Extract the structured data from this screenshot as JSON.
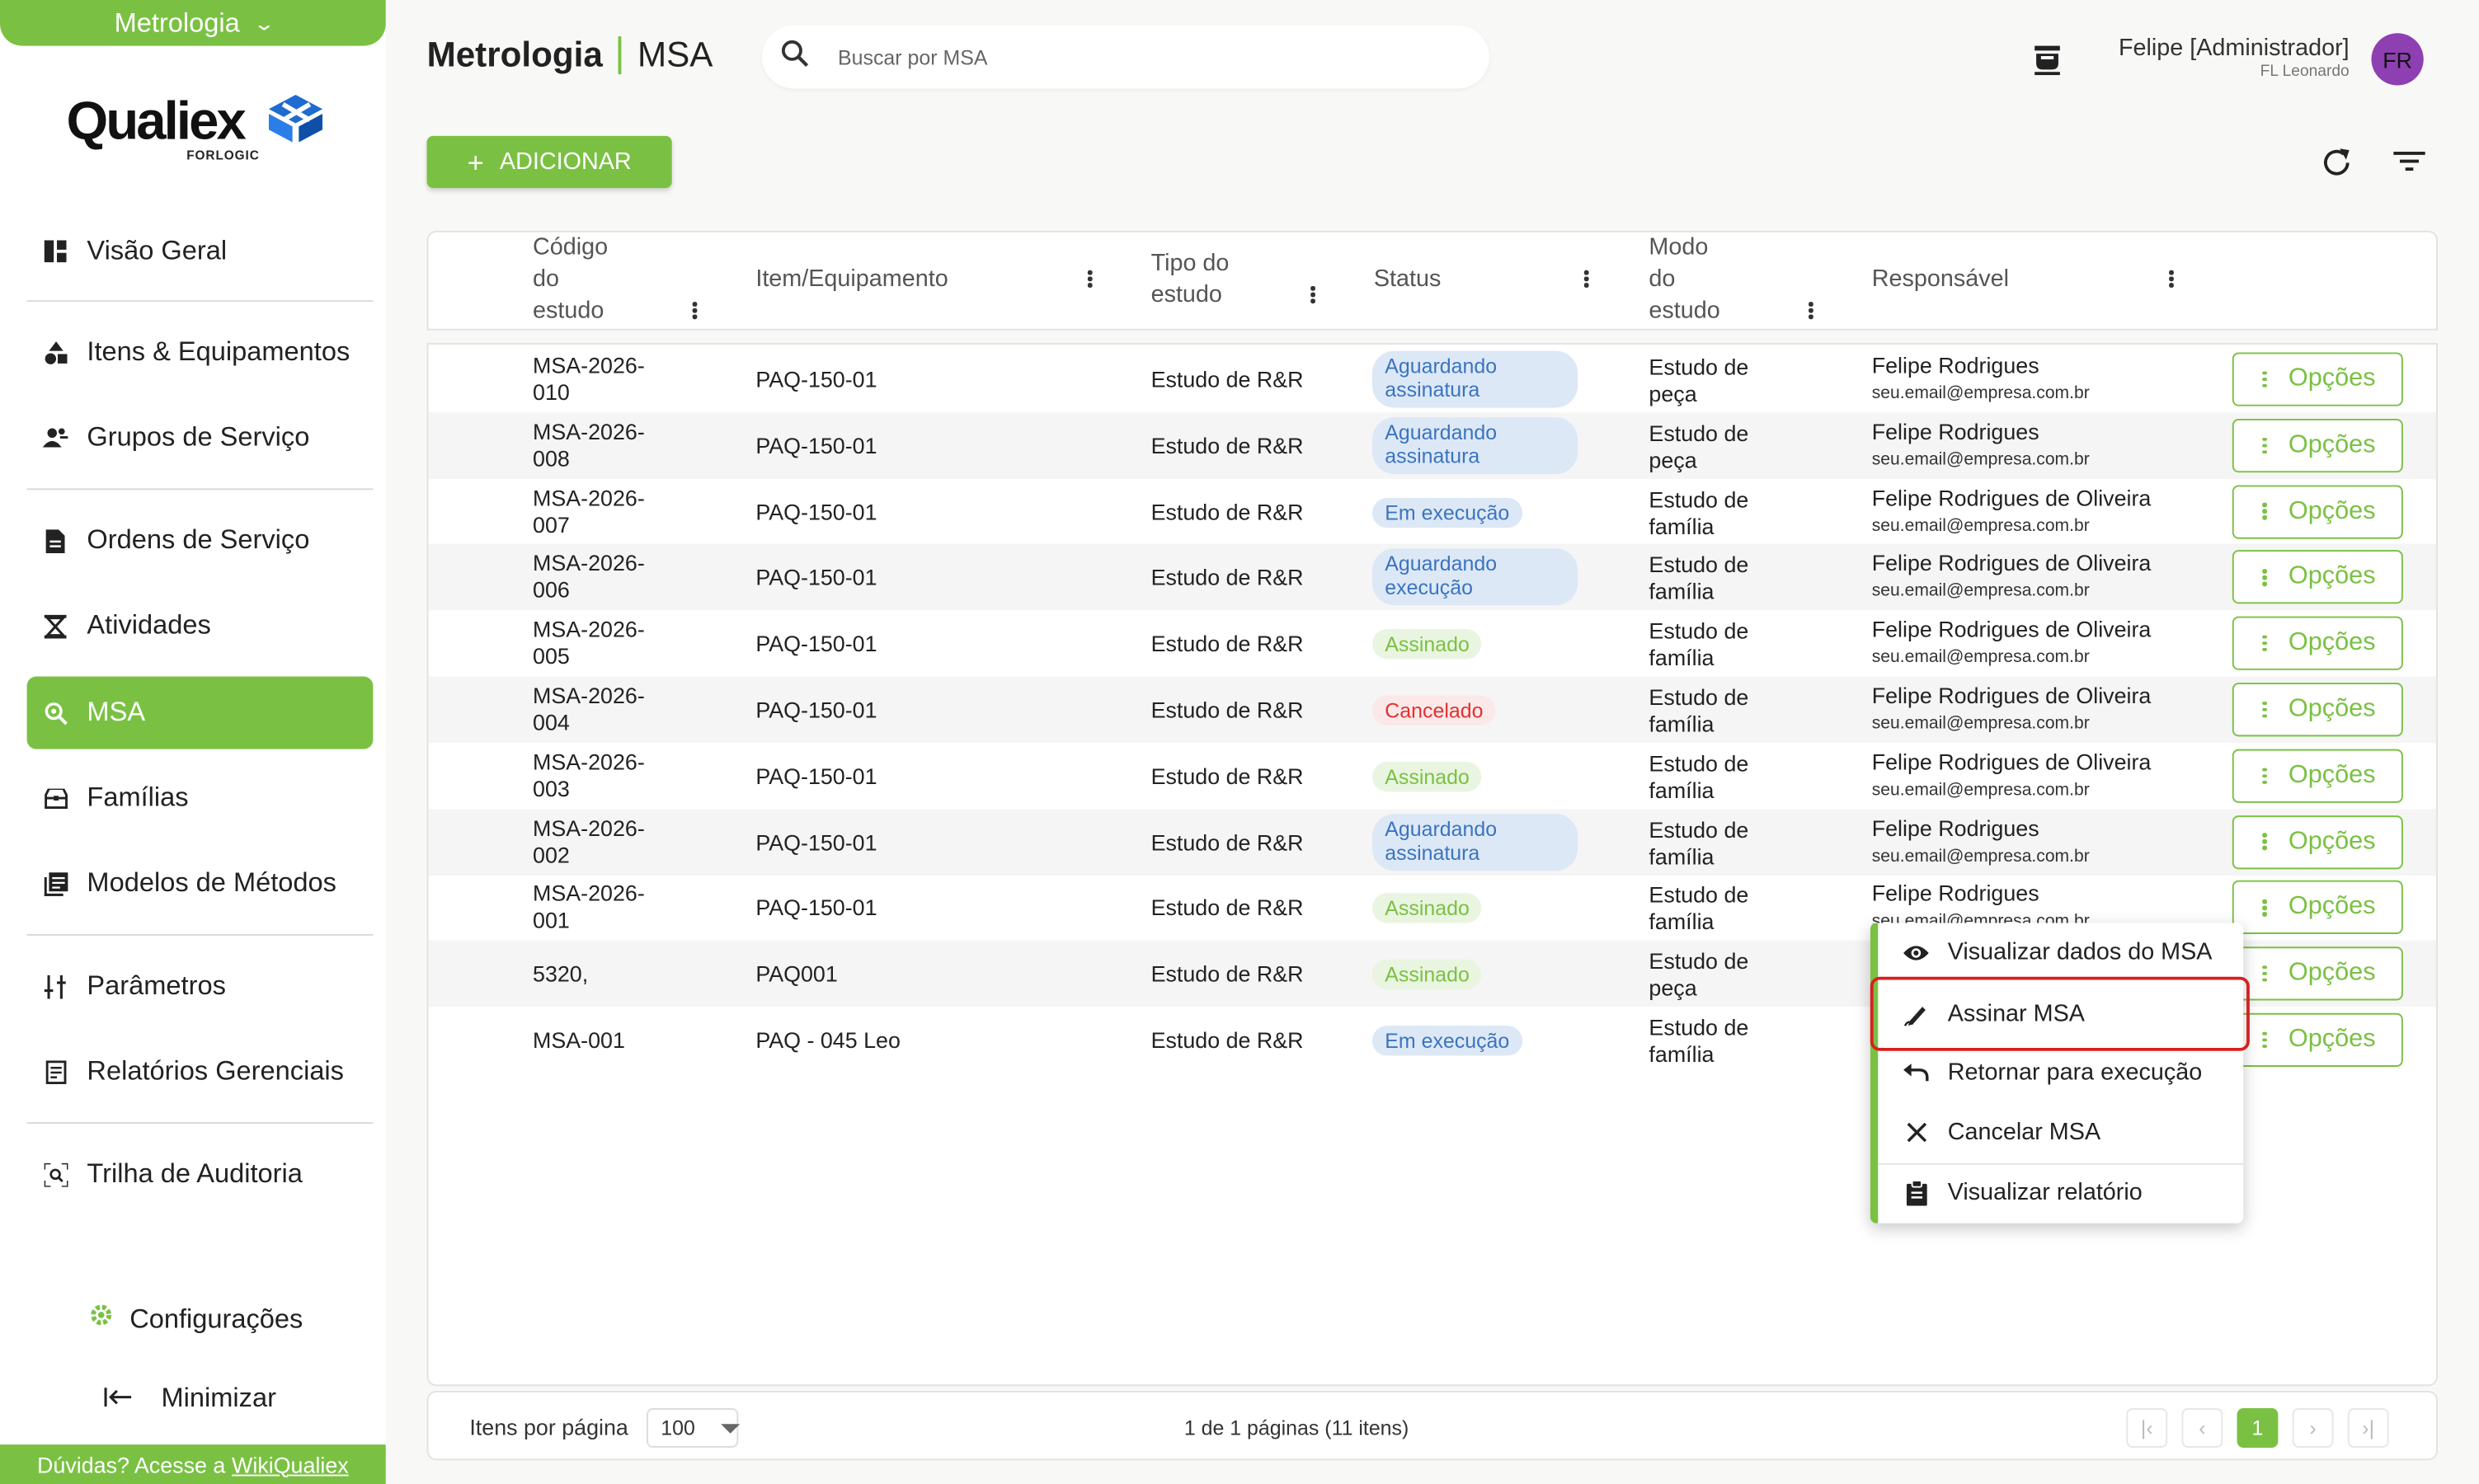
{
  "sidebar": {
    "module": "Metrologia",
    "logo_text": "Qualiex",
    "logo_sub": "FORLOGIC",
    "items": [
      {
        "label": "Visão Geral",
        "icon": "dashboard-icon"
      },
      {
        "label": "Itens & Equipamentos",
        "icon": "shapes-icon"
      },
      {
        "label": "Grupos de Serviço",
        "icon": "group-icon"
      },
      {
        "label": "Ordens de Serviço",
        "icon": "document-icon"
      },
      {
        "label": "Atividades",
        "icon": "hourglass-icon"
      },
      {
        "label": "MSA",
        "icon": "search-zoom-icon"
      },
      {
        "label": "Famílias",
        "icon": "box-icon"
      },
      {
        "label": "Modelos de Métodos",
        "icon": "library-icon"
      },
      {
        "label": "Parâmetros",
        "icon": "sliders-icon"
      },
      {
        "label": "Relatórios Gerenciais",
        "icon": "report-icon"
      },
      {
        "label": "Trilha de Auditoria",
        "icon": "audit-icon"
      }
    ],
    "config_label": "Configurações",
    "minimize_label": "Minimizar",
    "help_prefix": "Dúvidas? Acesse a",
    "help_link": "WikiQualiex"
  },
  "header": {
    "module": "Metrologia",
    "page": "MSA",
    "search_placeholder": "Buscar por MSA",
    "user_name": "Felipe [Administrador]",
    "user_company": "FL Leonardo",
    "avatar_initials": "FR"
  },
  "toolbar": {
    "add_label": "ADICIONAR"
  },
  "table": {
    "columns": {
      "codigo_1": "Código",
      "codigo_2": "do",
      "codigo_3": "estudo",
      "item": "Item/Equipamento",
      "tipo_1": "Tipo do",
      "tipo_2": "estudo",
      "status": "Status",
      "modo_1": "Modo",
      "modo_2": "do",
      "modo_3": "estudo",
      "responsavel": "Responsável"
    },
    "option_label": "Opções",
    "rows": [
      {
        "code1": "MSA-2026-",
        "code2": "010",
        "item": "PAQ-150-01",
        "tipo": "Estudo de R&R",
        "status1": "Aguardando",
        "status2": "assinatura",
        "status_color": "blue",
        "modo1": "Estudo de",
        "modo2": "peça",
        "resp": "Felipe Rodrigues",
        "email": "seu.email@empresa.com.br"
      },
      {
        "code1": "MSA-2026-",
        "code2": "008",
        "item": "PAQ-150-01",
        "tipo": "Estudo de R&R",
        "status1": "Aguardando",
        "status2": "assinatura",
        "status_color": "blue",
        "modo1": "Estudo de",
        "modo2": "peça",
        "resp": "Felipe Rodrigues",
        "email": "seu.email@empresa.com.br"
      },
      {
        "code1": "MSA-2026-",
        "code2": "007",
        "item": "PAQ-150-01",
        "tipo": "Estudo de R&R",
        "status1": "Em execução",
        "status2": "",
        "status_color": "blue",
        "modo1": "Estudo de",
        "modo2": "família",
        "resp": "Felipe Rodrigues de Oliveira",
        "email": "seu.email@empresa.com.br"
      },
      {
        "code1": "MSA-2026-",
        "code2": "006",
        "item": "PAQ-150-01",
        "tipo": "Estudo de R&R",
        "status1": "Aguardando",
        "status2": "execução",
        "status_color": "blue",
        "modo1": "Estudo de",
        "modo2": "família",
        "resp": "Felipe Rodrigues de Oliveira",
        "email": "seu.email@empresa.com.br"
      },
      {
        "code1": "MSA-2026-",
        "code2": "005",
        "item": "PAQ-150-01",
        "tipo": "Estudo de R&R",
        "status1": "Assinado",
        "status2": "",
        "status_color": "green",
        "modo1": "Estudo de",
        "modo2": "família",
        "resp": "Felipe Rodrigues de Oliveira",
        "email": "seu.email@empresa.com.br"
      },
      {
        "code1": "MSA-2026-",
        "code2": "004",
        "item": "PAQ-150-01",
        "tipo": "Estudo de R&R",
        "status1": "Cancelado",
        "status2": "",
        "status_color": "red",
        "modo1": "Estudo de",
        "modo2": "família",
        "resp": "Felipe Rodrigues de Oliveira",
        "email": "seu.email@empresa.com.br"
      },
      {
        "code1": "MSA-2026-",
        "code2": "003",
        "item": "PAQ-150-01",
        "tipo": "Estudo de R&R",
        "status1": "Assinado",
        "status2": "",
        "status_color": "green",
        "modo1": "Estudo de",
        "modo2": "família",
        "resp": "Felipe Rodrigues de Oliveira",
        "email": "seu.email@empresa.com.br"
      },
      {
        "code1": "MSA-2026-",
        "code2": "002",
        "item": "PAQ-150-01",
        "tipo": "Estudo de R&R",
        "status1": "Aguardando",
        "status2": "assinatura",
        "status_color": "blue",
        "modo1": "Estudo de",
        "modo2": "família",
        "resp": "Felipe Rodrigues",
        "email": "seu.email@empresa.com.br"
      },
      {
        "code1": "MSA-2026-",
        "code2": "001",
        "item": "PAQ-150-01",
        "tipo": "Estudo de R&R",
        "status1": "Assinado",
        "status2": "",
        "status_color": "green",
        "modo1": "Estudo de",
        "modo2": "família",
        "resp": "Felipe Rodrigues",
        "email": "seu.email@empresa.com.br"
      },
      {
        "code1": "5320,",
        "code2": "",
        "item": "PAQ001",
        "tipo": "Estudo de R&R",
        "status1": "Assinado",
        "status2": "",
        "status_color": "green",
        "modo1": "Estudo de",
        "modo2": "peça",
        "resp": "",
        "email": ""
      },
      {
        "code1": "MSA-001",
        "code2": "",
        "item": "PAQ - 045 Leo",
        "tipo": "Estudo de R&R",
        "status1": "Em execução",
        "status2": "",
        "status_color": "blue",
        "modo1": "Estudo de",
        "modo2": "família",
        "resp": "",
        "email": ""
      }
    ]
  },
  "context_menu": {
    "items": [
      {
        "label": "Visualizar dados do MSA",
        "icon": "eye-icon"
      },
      {
        "label": "Assinar MSA",
        "icon": "signature-icon"
      },
      {
        "label": "Retornar para execução",
        "icon": "undo-icon"
      },
      {
        "label": "Cancelar MSA",
        "icon": "close-icon"
      },
      {
        "label": "Visualizar relatório",
        "icon": "clipboard-icon"
      }
    ]
  },
  "footer": {
    "per_page_label": "Itens por página",
    "per_page_value": "100",
    "page_info": "1 de 1 páginas (11 itens)",
    "current_page": "1"
  },
  "colors": {
    "accent": "#7ac143",
    "avatar": "#8e3fb1",
    "highlight": "#d62020"
  }
}
